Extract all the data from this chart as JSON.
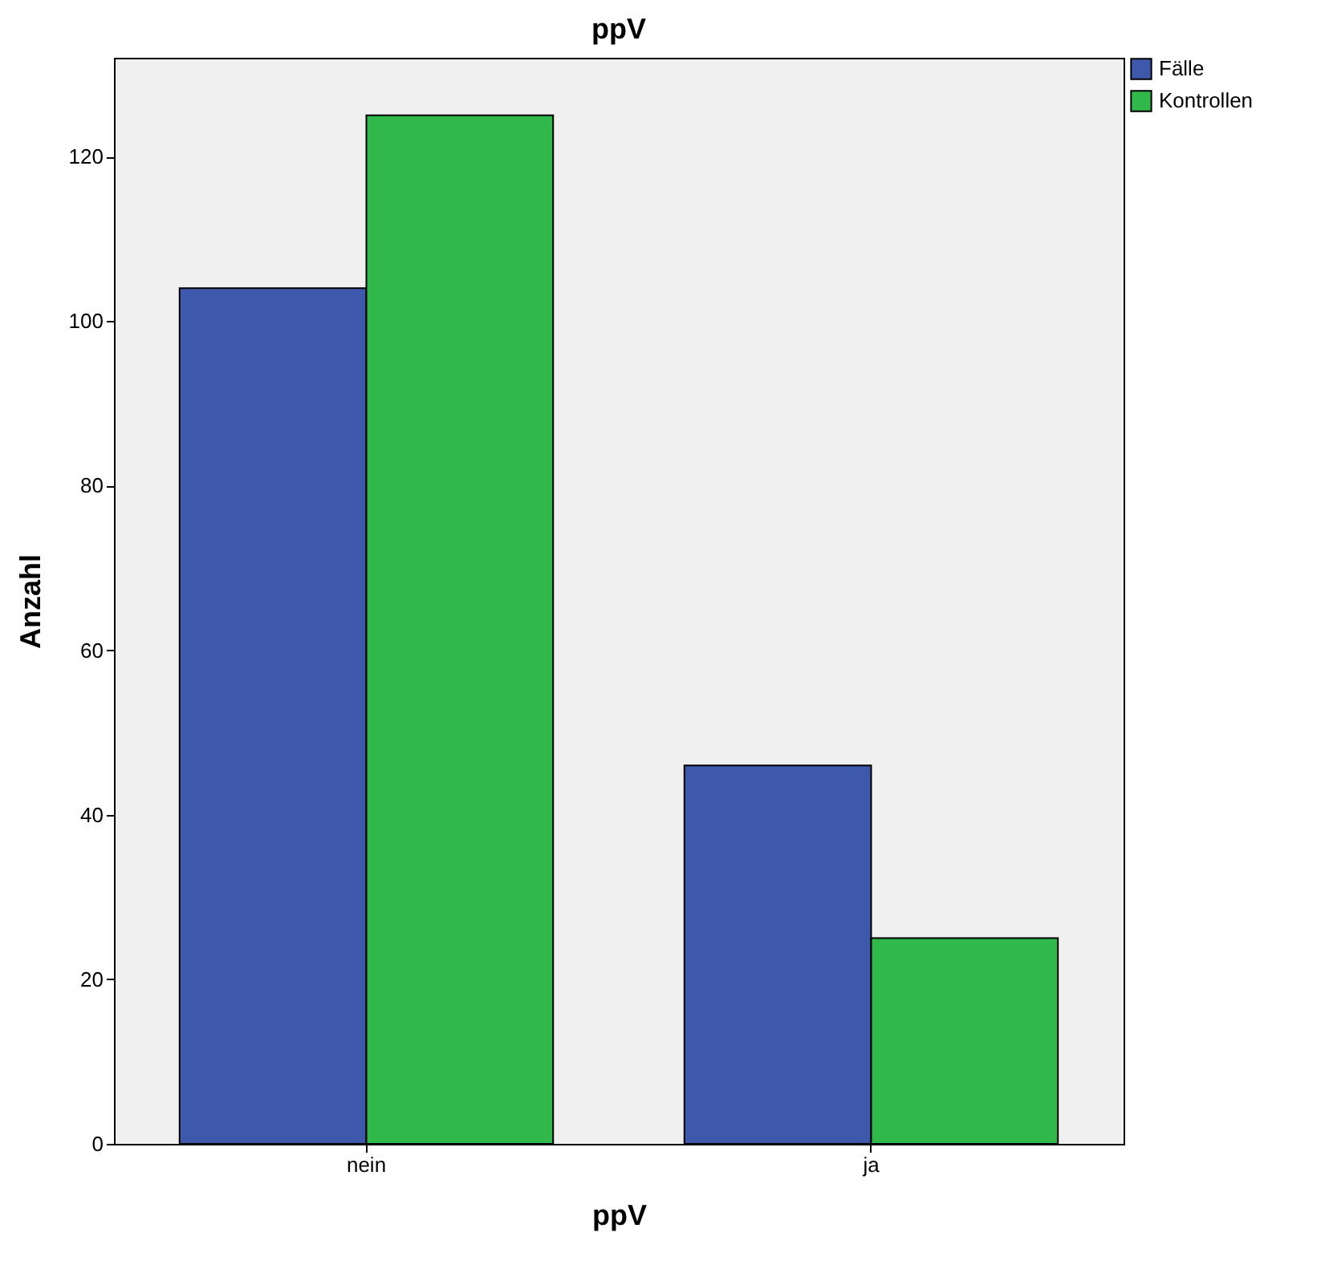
{
  "chart_data": {
    "type": "bar",
    "title": "ppV",
    "xlabel": "ppV",
    "ylabel": "Anzahl",
    "categories": [
      "nein",
      "ja"
    ],
    "series": [
      {
        "name": "Fälle",
        "color": "#3e58ac",
        "values": [
          104,
          46
        ]
      },
      {
        "name": "Kontrollen",
        "color": "#30b84a",
        "values": [
          125,
          25
        ]
      }
    ],
    "ylim": [
      0,
      132
    ],
    "yticks": [
      0,
      20,
      40,
      60,
      80,
      100,
      120
    ],
    "grid": false,
    "legend": "top right"
  }
}
